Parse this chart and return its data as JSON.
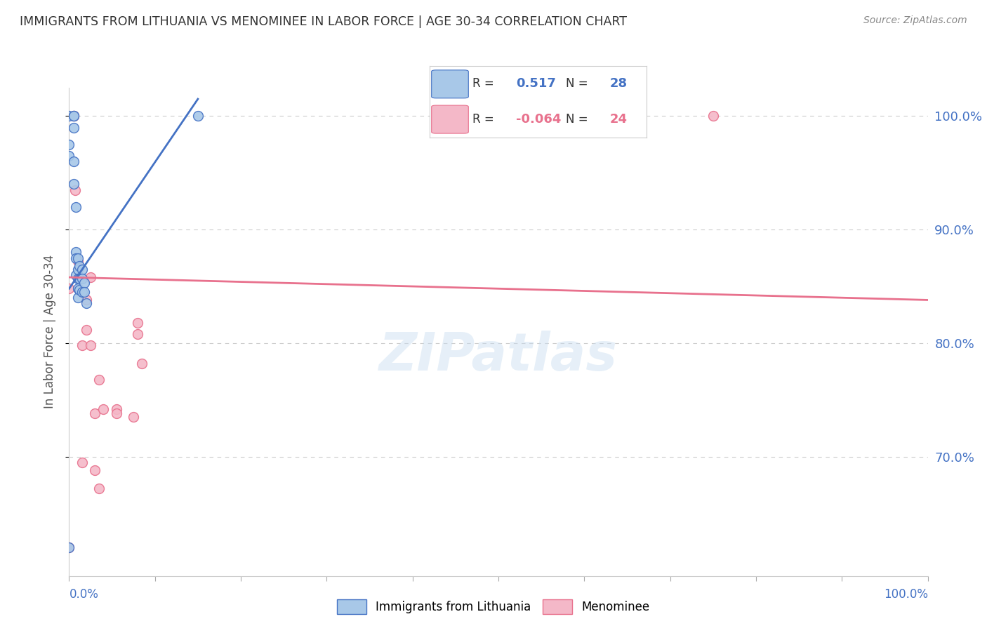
{
  "title": "IMMIGRANTS FROM LITHUANIA VS MENOMINEE IN LABOR FORCE | AGE 30-34 CORRELATION CHART",
  "source": "Source: ZipAtlas.com",
  "ylabel": "In Labor Force | Age 30-34",
  "ylabel_ticks": [
    "100.0%",
    "90.0%",
    "80.0%",
    "70.0%"
  ],
  "ylabel_tick_values": [
    1.0,
    0.9,
    0.8,
    0.7
  ],
  "xlim": [
    0.0,
    1.0
  ],
  "ylim": [
    0.595,
    1.025
  ],
  "legend1_r": "0.517",
  "legend1_n": "28",
  "legend2_r": "-0.064",
  "legend2_n": "24",
  "blue_color": "#a8c8e8",
  "blue_line_color": "#4472c4",
  "pink_color": "#f4b8c8",
  "pink_line_color": "#e8718d",
  "watermark": "ZIPatlas",
  "blue_x": [
    0.0,
    0.0,
    0.0,
    0.005,
    0.005,
    0.005,
    0.005,
    0.005,
    0.008,
    0.008,
    0.008,
    0.008,
    0.01,
    0.01,
    0.01,
    0.01,
    0.01,
    0.012,
    0.012,
    0.012,
    0.015,
    0.015,
    0.015,
    0.018,
    0.018,
    0.02,
    0.15,
    0.0
  ],
  "blue_y": [
    1.0,
    0.975,
    0.965,
    1.0,
    1.0,
    0.99,
    0.96,
    0.94,
    0.92,
    0.88,
    0.875,
    0.86,
    0.875,
    0.865,
    0.857,
    0.848,
    0.84,
    0.868,
    0.857,
    0.847,
    0.865,
    0.857,
    0.845,
    0.853,
    0.845,
    0.835,
    1.0,
    0.62
  ],
  "pink_x": [
    0.0,
    0.005,
    0.005,
    0.007,
    0.01,
    0.015,
    0.015,
    0.02,
    0.02,
    0.025,
    0.025,
    0.03,
    0.03,
    0.035,
    0.035,
    0.04,
    0.055,
    0.055,
    0.075,
    0.08,
    0.08,
    0.085,
    0.75,
    0.0
  ],
  "pink_y": [
    0.62,
    1.0,
    1.0,
    0.935,
    0.872,
    0.798,
    0.695,
    0.838,
    0.812,
    0.858,
    0.798,
    0.738,
    0.688,
    0.768,
    0.672,
    0.742,
    0.742,
    0.738,
    0.735,
    0.818,
    0.808,
    0.782,
    1.0,
    0.848
  ],
  "blue_trendline_x": [
    0.0,
    0.15
  ],
  "blue_trendline_y": [
    0.848,
    1.015
  ],
  "pink_trendline_x": [
    0.0,
    1.0
  ],
  "pink_trendline_y": [
    0.858,
    0.838
  ],
  "background_color": "#ffffff",
  "grid_color": "#cccccc",
  "title_color": "#333333",
  "right_axis_color": "#4472c4",
  "marker_size": 100
}
